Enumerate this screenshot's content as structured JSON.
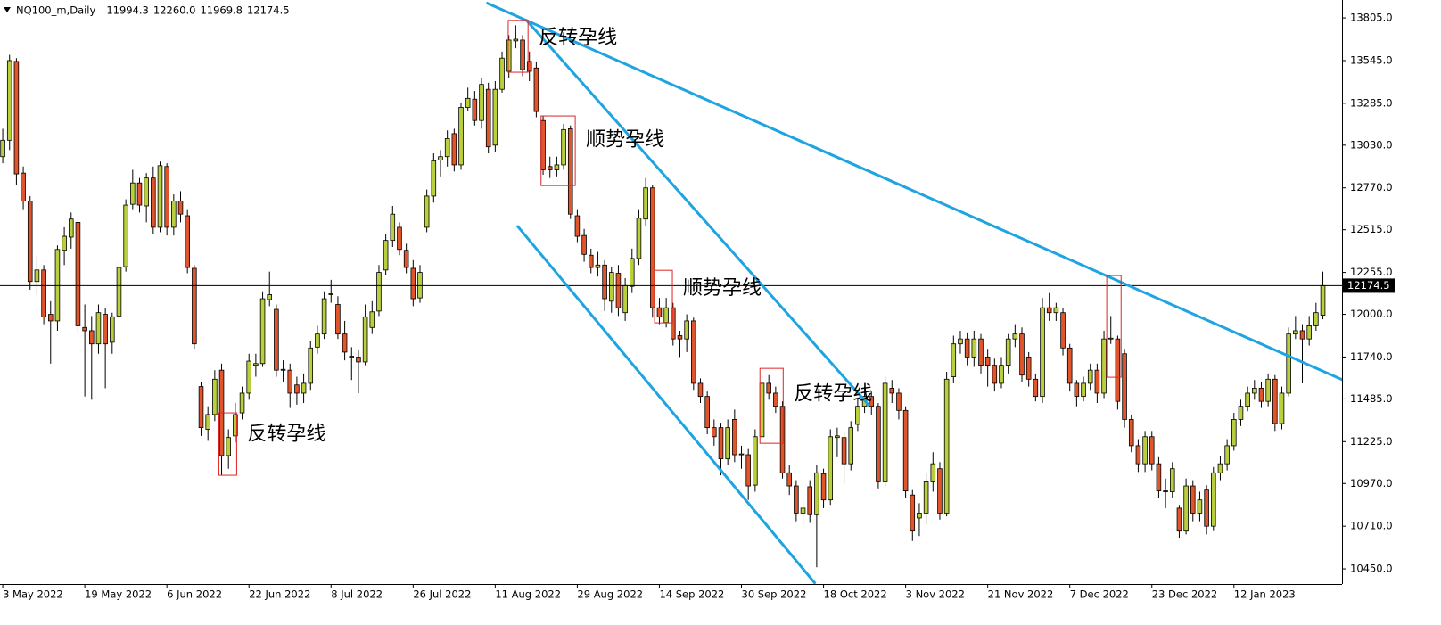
{
  "chart_data": {
    "type": "candlestick",
    "symbol": "NQ100_m,Daily",
    "header_labels": [
      "11994.3",
      "12260.0",
      "11969.8",
      "12174.5"
    ],
    "up_color": "#b9cf3e",
    "down_color": "#e0552b",
    "trendline_color": "#1fa4e2",
    "box_color": "#e02424",
    "xlim": [
      -0.4,
      195.8
    ],
    "ylim": [
      10358,
      13914
    ],
    "xticks": [
      {
        "value": 0,
        "label": "3 May 2022"
      },
      {
        "value": 12,
        "label": "19 May 2022"
      },
      {
        "value": 24,
        "label": "6 Jun 2022"
      },
      {
        "value": 36,
        "label": "22 Jun 2022"
      },
      {
        "value": 48,
        "label": "8 Jul 2022"
      },
      {
        "value": 60,
        "label": "26 Jul 2022"
      },
      {
        "value": 72,
        "label": "11 Aug 2022"
      },
      {
        "value": 84,
        "label": "29 Aug 2022"
      },
      {
        "value": 96,
        "label": "14 Sep 2022"
      },
      {
        "value": 108,
        "label": "30 Sep 2022"
      },
      {
        "value": 120,
        "label": "18 Oct 2022"
      },
      {
        "value": 132,
        "label": "3 Nov 2022"
      },
      {
        "value": 144,
        "label": "21 Nov 2022"
      },
      {
        "value": 156,
        "label": "7 Dec 2022"
      },
      {
        "value": 168,
        "label": "23 Dec 2022"
      },
      {
        "value": 180,
        "label": "12 Jan 2023"
      }
    ],
    "yticks": [
      {
        "value": 13805,
        "label": "13805.0"
      },
      {
        "value": 13545,
        "label": "13545.0"
      },
      {
        "value": 13285,
        "label": "13285.0"
      },
      {
        "value": 13030,
        "label": "13030.0"
      },
      {
        "value": 12770,
        "label": "12770.0"
      },
      {
        "value": 12515,
        "label": "12515.0"
      },
      {
        "value": 12255,
        "label": "12255.0"
      },
      {
        "value": 12000,
        "label": "12000.0"
      },
      {
        "value": 11740,
        "label": "11740.0"
      },
      {
        "value": 11485,
        "label": "11485.0"
      },
      {
        "value": 11225,
        "label": "11225.0"
      },
      {
        "value": 10970,
        "label": "10970.0"
      },
      {
        "value": 10710,
        "label": "10710.0"
      },
      {
        "value": 10450,
        "label": "10450.0"
      }
    ],
    "grid": false,
    "trendlines": [
      {
        "x": [
          70.7,
          196.5
        ],
        "y": [
          13897,
          11590
        ]
      },
      {
        "x": [
          76.5,
          126.7
        ],
        "y": [
          13794,
          11443
        ]
      },
      {
        "x": [
          75.2,
          118.8
        ],
        "y": [
          12540,
          10360
        ]
      }
    ],
    "boxes": [
      {
        "x": [
          31.6,
          34.2
        ],
        "y": [
          11020,
          11400
        ],
        "label": "反转孕线"
      },
      {
        "x": [
          73.9,
          76.8
        ],
        "y": [
          13474,
          13790
        ],
        "label": "反转孕线"
      },
      {
        "x": [
          78.7,
          83.7
        ],
        "y": [
          12784,
          13208
        ],
        "label": "顺势孕线"
      },
      {
        "x": [
          95.3,
          97.9
        ],
        "y": [
          11948,
          12268
        ],
        "label": "顺势孕线"
      },
      {
        "x": [
          110.7,
          114.1
        ],
        "y": [
          11215,
          11671
        ],
        "label": "反转孕线"
      },
      {
        "x": [
          161.4,
          163.5
        ],
        "y": [
          11617,
          12236
        ]
      }
    ],
    "ohlc": [
      [
        12960,
        13130,
        12920,
        13060
      ],
      [
        13060,
        13580,
        13000,
        13545
      ],
      [
        13540,
        13560,
        12790,
        12855
      ],
      [
        12860,
        12900,
        12640,
        12690
      ],
      [
        12690,
        12720,
        12150,
        12200
      ],
      [
        12200,
        12360,
        12120,
        12270
      ],
      [
        12270,
        12300,
        11940,
        11985
      ],
      [
        12000,
        12080,
        11700,
        11960
      ],
      [
        11960,
        12420,
        11900,
        12395
      ],
      [
        12390,
        12530,
        12300,
        12475
      ],
      [
        12470,
        12620,
        12400,
        12580
      ],
      [
        12560,
        12580,
        11890,
        11930
      ],
      [
        11920,
        12060,
        11500,
        11900
      ],
      [
        11900,
        11990,
        11480,
        11820
      ],
      [
        11820,
        12060,
        11760,
        12010
      ],
      [
        12000,
        12040,
        11550,
        11820
      ],
      [
        11830,
        12010,
        11760,
        11985
      ],
      [
        11990,
        12330,
        11950,
        12285
      ],
      [
        12290,
        12700,
        12260,
        12665
      ],
      [
        12670,
        12880,
        12640,
        12800
      ],
      [
        12800,
        12830,
        12620,
        12665
      ],
      [
        12660,
        12860,
        12560,
        12830
      ],
      [
        12830,
        12900,
        12490,
        12530
      ],
      [
        12530,
        12930,
        12500,
        12905
      ],
      [
        12900,
        12920,
        12480,
        12530
      ],
      [
        12530,
        12730,
        12480,
        12690
      ],
      [
        12690,
        12750,
        12560,
        12610
      ],
      [
        12600,
        12640,
        12250,
        12285
      ],
      [
        12280,
        12300,
        11790,
        11820
      ],
      [
        11560,
        11590,
        11260,
        11310
      ],
      [
        11300,
        11440,
        11230,
        11390
      ],
      [
        11390,
        11660,
        11350,
        11605
      ],
      [
        11660,
        11700,
        11020,
        11140
      ],
      [
        11140,
        11300,
        11060,
        11250
      ],
      [
        11260,
        11460,
        11220,
        11390
      ],
      [
        11400,
        11560,
        11360,
        11520
      ],
      [
        11520,
        11760,
        11480,
        11715
      ],
      [
        11690,
        11760,
        11620,
        11700
      ],
      [
        11700,
        12140,
        11680,
        12095
      ],
      [
        12090,
        12260,
        12050,
        12120
      ],
      [
        12030,
        12060,
        11620,
        11660
      ],
      [
        11660,
        11720,
        11590,
        11665
      ],
      [
        11660,
        11700,
        11430,
        11520
      ],
      [
        11570,
        11620,
        11450,
        11520
      ],
      [
        11520,
        11640,
        11460,
        11580
      ],
      [
        11580,
        11840,
        11540,
        11795
      ],
      [
        11800,
        11930,
        11760,
        11880
      ],
      [
        11880,
        12140,
        11850,
        12095
      ],
      [
        12120,
        12210,
        12070,
        12125
      ],
      [
        12060,
        12110,
        11850,
        11880
      ],
      [
        11880,
        11960,
        11720,
        11770
      ],
      [
        11740,
        11800,
        11600,
        11745
      ],
      [
        11740,
        11780,
        11520,
        11710
      ],
      [
        11710,
        12060,
        11690,
        11985
      ],
      [
        11920,
        12080,
        11880,
        12015
      ],
      [
        12020,
        12300,
        11990,
        12255
      ],
      [
        12270,
        12490,
        12240,
        12450
      ],
      [
        12450,
        12660,
        12410,
        12610
      ],
      [
        12530,
        12560,
        12360,
        12395
      ],
      [
        12390,
        12430,
        12250,
        12285
      ],
      [
        12280,
        12330,
        12050,
        12095
      ],
      [
        12100,
        12300,
        12070,
        12255
      ],
      [
        12530,
        12760,
        12500,
        12720
      ],
      [
        12720,
        12980,
        12680,
        12935
      ],
      [
        12940,
        13000,
        12840,
        12960
      ],
      [
        12960,
        13120,
        12900,
        13070
      ],
      [
        13100,
        13130,
        12870,
        12910
      ],
      [
        12910,
        13290,
        12880,
        13260
      ],
      [
        13260,
        13380,
        13240,
        13315
      ],
      [
        13310,
        13360,
        13150,
        13180
      ],
      [
        13180,
        13440,
        13130,
        13400
      ],
      [
        13370,
        13410,
        12980,
        13020
      ],
      [
        13030,
        13420,
        12990,
        13370
      ],
      [
        13370,
        13600,
        13350,
        13560
      ],
      [
        13480,
        13700,
        13440,
        13670
      ],
      [
        13665,
        13760,
        13620,
        13675
      ],
      [
        13670,
        13700,
        13450,
        13490
      ],
      [
        13540,
        13600,
        13420,
        13480
      ],
      [
        13500,
        13540,
        13200,
        13235
      ],
      [
        13180,
        13210,
        12850,
        12880
      ],
      [
        12900,
        12960,
        12830,
        12880
      ],
      [
        12880,
        12960,
        12840,
        12910
      ],
      [
        12910,
        13160,
        12880,
        13125
      ],
      [
        13130,
        13150,
        12580,
        12610
      ],
      [
        12600,
        12640,
        12440,
        12475
      ],
      [
        12480,
        12520,
        12320,
        12365
      ],
      [
        12360,
        12400,
        12250,
        12285
      ],
      [
        12285,
        12380,
        12230,
        12300
      ],
      [
        12300,
        12330,
        12020,
        12095
      ],
      [
        12080,
        12290,
        12010,
        12255
      ],
      [
        12250,
        12300,
        11990,
        12040
      ],
      [
        12010,
        12220,
        11960,
        12175
      ],
      [
        12170,
        12400,
        12130,
        12340
      ],
      [
        12340,
        12640,
        12300,
        12585
      ],
      [
        12580,
        12830,
        12540,
        12770
      ],
      [
        12770,
        12790,
        11980,
        12040
      ],
      [
        12040,
        12100,
        11940,
        11985
      ],
      [
        11950,
        12100,
        11920,
        12040
      ],
      [
        12040,
        12070,
        11810,
        11850
      ],
      [
        11870,
        11900,
        11740,
        11850
      ],
      [
        11850,
        12000,
        11770,
        11960
      ],
      [
        11960,
        11980,
        11540,
        11580
      ],
      [
        11580,
        11610,
        11460,
        11500
      ],
      [
        11500,
        11530,
        11270,
        11310
      ],
      [
        11310,
        11360,
        11200,
        11255
      ],
      [
        11310,
        11340,
        11020,
        11120
      ],
      [
        11120,
        11360,
        11080,
        11310
      ],
      [
        11360,
        11420,
        11100,
        11145
      ],
      [
        11145,
        11200,
        11060,
        11150
      ],
      [
        11145,
        11180,
        10870,
        10955
      ],
      [
        10960,
        11300,
        10920,
        11255
      ],
      [
        11255,
        11620,
        11220,
        11580
      ],
      [
        11580,
        11630,
        11480,
        11520
      ],
      [
        11520,
        11560,
        11400,
        11440
      ],
      [
        11440,
        11470,
        11000,
        11035
      ],
      [
        11035,
        11080,
        10900,
        10955
      ],
      [
        10955,
        10990,
        10740,
        10790
      ],
      [
        10790,
        10860,
        10720,
        10820
      ],
      [
        10950,
        10990,
        10730,
        10780
      ],
      [
        10780,
        11080,
        10460,
        11035
      ],
      [
        11030,
        11060,
        10820,
        10870
      ],
      [
        10870,
        11300,
        10840,
        11255
      ],
      [
        11250,
        11310,
        11130,
        11260
      ],
      [
        11250,
        11280,
        10970,
        11090
      ],
      [
        11090,
        11350,
        11050,
        11310
      ],
      [
        11330,
        11490,
        11290,
        11440
      ],
      [
        11440,
        11560,
        11400,
        11500
      ],
      [
        11500,
        11530,
        11390,
        11440
      ],
      [
        11440,
        11460,
        10940,
        10980
      ],
      [
        10980,
        11620,
        10950,
        11580
      ],
      [
        11550,
        11600,
        11460,
        11520
      ],
      [
        11520,
        11550,
        11360,
        11415
      ],
      [
        11415,
        11440,
        10880,
        10925
      ],
      [
        10900,
        10930,
        10620,
        10680
      ],
      [
        10760,
        10850,
        10650,
        10790
      ],
      [
        10790,
        11030,
        10720,
        10980
      ],
      [
        10980,
        11160,
        10920,
        11090
      ],
      [
        11060,
        11100,
        10750,
        10790
      ],
      [
        10790,
        11650,
        10770,
        11605
      ],
      [
        11620,
        11870,
        11580,
        11820
      ],
      [
        11820,
        11900,
        11760,
        11850
      ],
      [
        11850,
        11890,
        11690,
        11740
      ],
      [
        11740,
        11900,
        11680,
        11850
      ],
      [
        11850,
        11880,
        11640,
        11690
      ],
      [
        11740,
        11790,
        11560,
        11690
      ],
      [
        11690,
        11730,
        11530,
        11580
      ],
      [
        11580,
        11740,
        11550,
        11690
      ],
      [
        11690,
        11880,
        11640,
        11850
      ],
      [
        11850,
        11940,
        11800,
        11880
      ],
      [
        11880,
        11920,
        11590,
        11630
      ],
      [
        11740,
        11770,
        11560,
        11605
      ],
      [
        11605,
        11640,
        11470,
        11500
      ],
      [
        11500,
        12100,
        11460,
        12040
      ],
      [
        12040,
        12130,
        11960,
        12010
      ],
      [
        12010,
        12070,
        11960,
        12040
      ],
      [
        12010,
        12040,
        11750,
        11795
      ],
      [
        11795,
        11820,
        11530,
        11580
      ],
      [
        11580,
        11600,
        11440,
        11500
      ],
      [
        11500,
        11620,
        11470,
        11580
      ],
      [
        11580,
        11700,
        11540,
        11660
      ],
      [
        11660,
        11700,
        11460,
        11520
      ],
      [
        11520,
        11900,
        11490,
        11850
      ],
      [
        11850,
        11990,
        11820,
        11855
      ],
      [
        11850,
        11870,
        11420,
        11470
      ],
      [
        11760,
        11790,
        11310,
        11360
      ],
      [
        11360,
        11390,
        11160,
        11200
      ],
      [
        11200,
        11240,
        11040,
        11090
      ],
      [
        11090,
        11290,
        11040,
        11255
      ],
      [
        11255,
        11290,
        11050,
        11090
      ],
      [
        11090,
        11130,
        10880,
        10925
      ],
      [
        10925,
        11000,
        10820,
        10920
      ],
      [
        10920,
        11100,
        10880,
        11060
      ],
      [
        10820,
        10840,
        10640,
        10680
      ],
      [
        10680,
        11000,
        10660,
        10955
      ],
      [
        10955,
        10990,
        10740,
        10790
      ],
      [
        10790,
        10920,
        10740,
        10870
      ],
      [
        10930,
        10960,
        10660,
        10710
      ],
      [
        10710,
        11070,
        10680,
        11035
      ],
      [
        11035,
        11140,
        10990,
        11090
      ],
      [
        11090,
        11240,
        11050,
        11200
      ],
      [
        11200,
        11400,
        11170,
        11360
      ],
      [
        11360,
        11480,
        11320,
        11440
      ],
      [
        11440,
        11560,
        11410,
        11520
      ],
      [
        11520,
        11600,
        11480,
        11550
      ],
      [
        11550,
        11590,
        11430,
        11470
      ],
      [
        11470,
        11640,
        11440,
        11605
      ],
      [
        11605,
        11630,
        11290,
        11335
      ],
      [
        11335,
        11560,
        11300,
        11520
      ],
      [
        11520,
        11920,
        11500,
        11880
      ],
      [
        11880,
        11990,
        11850,
        11900
      ],
      [
        11900,
        11940,
        11580,
        11850
      ],
      [
        11850,
        11990,
        11810,
        11930
      ],
      [
        11930,
        12070,
        11900,
        12010
      ],
      [
        11994.3,
        12260,
        11969.8,
        12174.5
      ]
    ]
  }
}
